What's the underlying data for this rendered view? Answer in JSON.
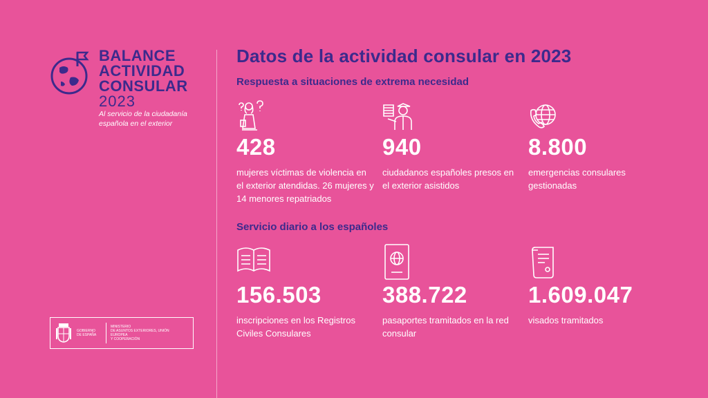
{
  "logo": {
    "line1": "BALANCE",
    "line2": "ACTIVIDAD",
    "line3": "CONSULAR",
    "year": "2023",
    "tagline1": "Al servicio de la ciudadanía",
    "tagline2": "española en el exterior",
    "icon": "globe-flag-icon"
  },
  "government": {
    "left1": "GOBIERNO",
    "left2": "DE ESPAÑA",
    "right1": "MINISTERIO",
    "right2": "DE ASUNTOS EXTERIORES, UNIÓN EUROPEA",
    "right3": "Y COOPERACIÓN"
  },
  "title": "Datos de la actividad consular en 2023",
  "section1": {
    "heading": "Respuesta a situaciones de extrema necesidad",
    "cards": [
      {
        "icon": "woman-question-icon",
        "value": "428",
        "desc": "mujeres víctimas de violencia en el exterior atendidas. 26 mujeres y 14 menores repatriados"
      },
      {
        "icon": "prisoner-officer-icon",
        "value": "940",
        "desc": "ciudadanos españoles presos en el exterior asistidos"
      },
      {
        "icon": "phone-globe-icon",
        "value": "8.800",
        "desc": "emergencias consulares gestionadas"
      }
    ]
  },
  "section2": {
    "heading": "Servicio diario a los españoles",
    "cards": [
      {
        "icon": "open-book-icon",
        "value": "156.503",
        "desc": "inscripciones en los Registros Civiles Consulares"
      },
      {
        "icon": "passport-icon",
        "value": "388.722",
        "desc": "pasaportes tramitados en la red consular"
      },
      {
        "icon": "scroll-document-icon",
        "value": "1.609.047",
        "desc": "visados tramitados"
      }
    ]
  },
  "colors": {
    "background": "#e8539a",
    "accent": "#3c2a8c",
    "text": "#ffffff"
  }
}
